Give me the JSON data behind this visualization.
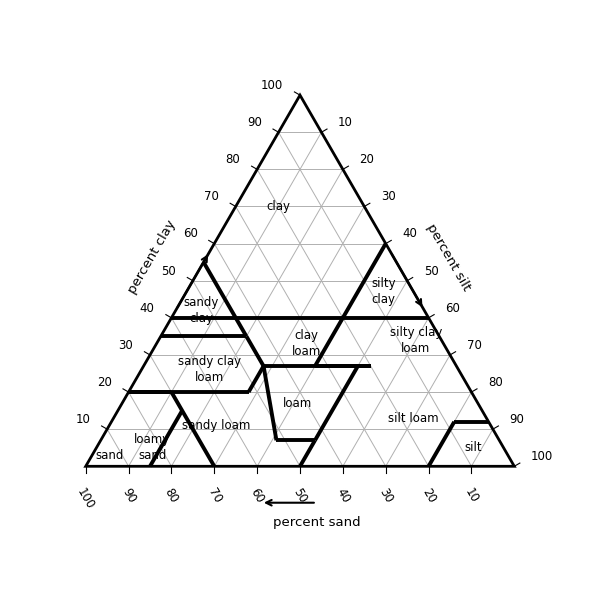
{
  "grid_values": [
    10,
    20,
    30,
    40,
    50,
    60,
    70,
    80,
    90
  ],
  "tick_values": [
    10,
    20,
    30,
    40,
    50,
    60,
    70,
    80,
    90,
    100
  ],
  "grid_color": "#b0b0b0",
  "thick_lw": 2.8,
  "thin_lw": 0.7,
  "outer_lw": 2.0,
  "label_fontsize": 8.5,
  "tick_fontsize": 8.5,
  "axis_label_fontsize": 9.5,
  "soil_labels": [
    {
      "text": "clay",
      "clay": 70,
      "sand": 20,
      "silt": 10
    },
    {
      "text": "silty\nclay",
      "clay": 47,
      "sand": 7,
      "silt": 46
    },
    {
      "text": "sandy\nclay",
      "clay": 42,
      "sand": 52,
      "silt": 6
    },
    {
      "text": "silty clay\nloam",
      "clay": 34,
      "sand": 6,
      "silt": 60
    },
    {
      "text": "clay\nloam",
      "clay": 33,
      "sand": 32,
      "silt": 35
    },
    {
      "text": "sandy clay\nloam",
      "clay": 26,
      "sand": 58,
      "silt": 16
    },
    {
      "text": "loam",
      "clay": 17,
      "sand": 42,
      "silt": 41
    },
    {
      "text": "silt loam",
      "clay": 13,
      "sand": 17,
      "silt": 70
    },
    {
      "text": "silt",
      "clay": 5,
      "sand": 7,
      "silt": 88
    },
    {
      "text": "sandy loam",
      "clay": 11,
      "sand": 64,
      "silt": 25
    },
    {
      "text": "loamy\nsand",
      "clay": 5,
      "sand": 82,
      "silt": 13
    },
    {
      "text": "sand",
      "clay": 3,
      "sand": 93,
      "silt": 4
    }
  ],
  "thick_segments": [
    [
      40,
      60,
      0,
      40,
      0,
      60
    ],
    [
      55,
      45,
      0,
      35,
      45,
      20
    ],
    [
      35,
      45,
      20,
      35,
      65,
      0
    ],
    [
      60,
      0,
      40,
      40,
      20,
      40
    ],
    [
      40,
      20,
      40,
      27,
      33,
      40
    ],
    [
      27,
      33,
      40,
      27,
      20,
      53
    ],
    [
      27,
      45,
      28,
      35,
      45,
      20
    ],
    [
      27,
      20,
      53,
      27,
      45,
      28
    ],
    [
      20,
      52,
      28,
      20,
      80,
      0
    ],
    [
      27,
      45,
      28,
      20,
      52,
      28
    ],
    [
      27,
      20,
      53,
      27,
      23,
      50
    ],
    [
      27,
      23,
      50,
      7,
      43,
      50
    ],
    [
      7,
      43,
      50,
      7,
      52,
      41
    ],
    [
      7,
      52,
      41,
      27,
      45,
      28
    ],
    [
      7,
      43,
      50,
      0,
      50,
      50
    ],
    [
      12,
      8,
      80,
      0,
      20,
      80
    ],
    [
      12,
      8,
      80,
      12,
      0,
      88
    ],
    [
      20,
      70,
      10,
      0,
      70,
      30
    ],
    [
      20,
      70,
      10,
      20,
      80,
      0
    ],
    [
      15,
      70,
      15,
      0,
      85,
      15
    ]
  ]
}
